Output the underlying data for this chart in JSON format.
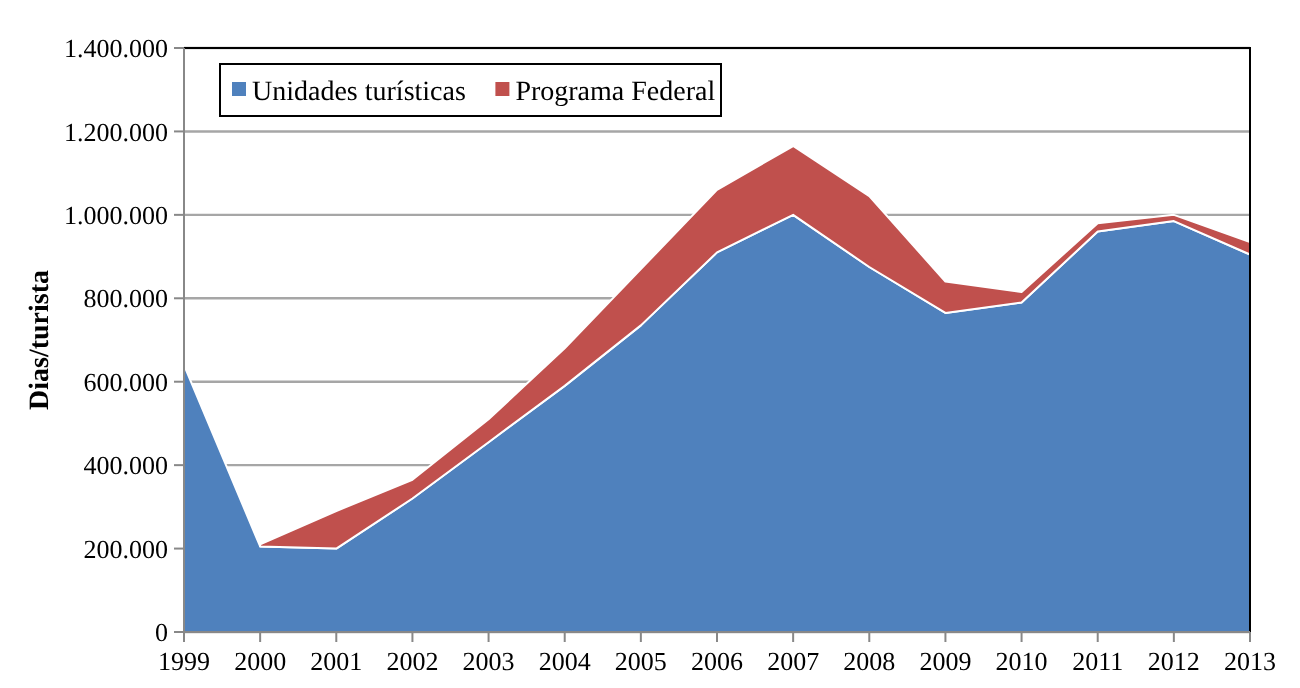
{
  "chart_data": {
    "type": "area",
    "stacked": true,
    "ylabel": "Dias/turista",
    "categories": [
      "1999",
      "2000",
      "2001",
      "2002",
      "2003",
      "2004",
      "2005",
      "2006",
      "2007",
      "2008",
      "2009",
      "2010",
      "2011",
      "2012",
      "2013"
    ],
    "series": [
      {
        "name": "Unidades turísticas",
        "color": "#4f81bd",
        "values": [
          640000,
          205000,
          200000,
          320000,
          455000,
          590000,
          735000,
          910000,
          1000000,
          875000,
          765000,
          790000,
          960000,
          985000,
          905000
        ]
      },
      {
        "name": "Programa Federal",
        "color": "#c0504d",
        "values": [
          null,
          5000,
          90000,
          45000,
          55000,
          90000,
          135000,
          150000,
          165000,
          170000,
          75000,
          25000,
          20000,
          15000,
          30000
        ]
      }
    ],
    "ylim": [
      0,
      1400000
    ],
    "yticks": [
      0,
      {
        "value": 200000,
        "label": "200.000"
      },
      {
        "value": 400000,
        "label": "400.000"
      },
      {
        "value": 600000,
        "label": "600.000"
      },
      {
        "value": 800000,
        "label": "800.000"
      },
      {
        "value": 1000000,
        "label": "1.000.000"
      },
      {
        "value": 1200000,
        "label": "1.200.000"
      },
      {
        "value": 1400000,
        "label": "1.400.000"
      }
    ],
    "grid": "y",
    "legend": "top left"
  }
}
